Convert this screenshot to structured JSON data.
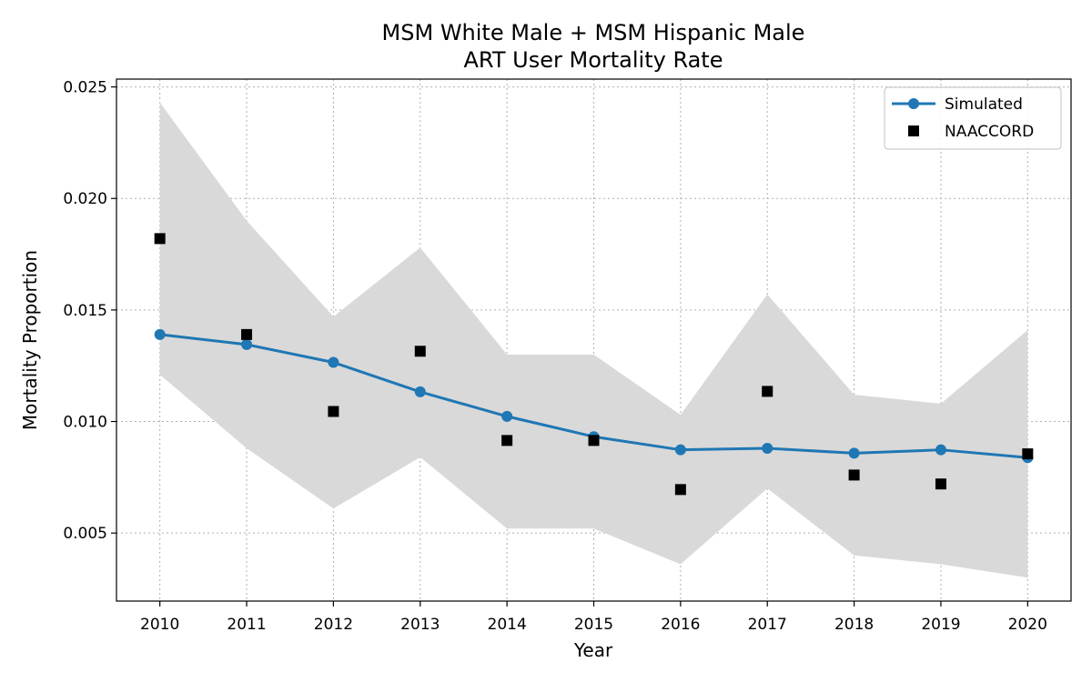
{
  "chart_data": {
    "type": "line",
    "title_line1": "MSM White Male + MSM Hispanic Male",
    "title_line2": "ART User Mortality Rate",
    "xlabel": "Year",
    "ylabel": "Mortality Proportion",
    "x": [
      2010,
      2011,
      2012,
      2013,
      2014,
      2015,
      2016,
      2017,
      2018,
      2019,
      2020
    ],
    "xlim": [
      2009.5,
      2020.5
    ],
    "ylim": [
      0.00195,
      0.02535
    ],
    "yticks": [
      0.005,
      0.01,
      0.015,
      0.02,
      0.025
    ],
    "ytick_labels": [
      "0.005",
      "0.010",
      "0.015",
      "0.020",
      "0.025"
    ],
    "grid": true,
    "legend_position": "top-right",
    "series": [
      {
        "name": "Simulated",
        "kind": "line-marker",
        "color": "#1f77b4",
        "values": [
          0.0139,
          0.01345,
          0.01265,
          0.01133,
          0.01023,
          0.00932,
          0.00873,
          0.0088,
          0.00858,
          0.00873,
          0.00838
        ],
        "band_lower": [
          0.0121,
          0.0088,
          0.0061,
          0.0084,
          0.0052,
          0.0052,
          0.0036,
          0.007,
          0.004,
          0.0036,
          0.003
        ],
        "band_upper": [
          0.0243,
          0.019,
          0.0147,
          0.0178,
          0.013,
          0.013,
          0.0103,
          0.0157,
          0.0112,
          0.0108,
          0.0141
        ],
        "band_color": "#d9d9d9"
      },
      {
        "name": "NAACCORD",
        "kind": "marker",
        "color": "#000000",
        "values": [
          0.0182,
          0.0139,
          0.01045,
          0.01315,
          0.00915,
          0.00915,
          0.00695,
          0.01135,
          0.0076,
          0.0072,
          0.00855
        ]
      }
    ]
  }
}
